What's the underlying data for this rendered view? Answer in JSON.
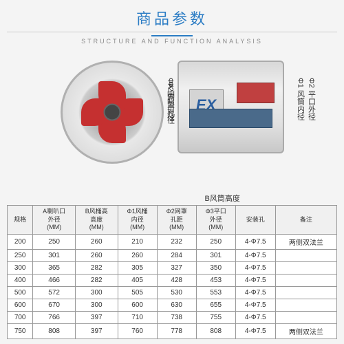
{
  "header": {
    "title": "商品参数",
    "subtitle": "STRUCTURE AND FUNCTION ANALYSIS"
  },
  "diagram": {
    "dim_phi2_mesh": "Φ2 网罩孔径",
    "dim_phiA_horn": "ΦA 喇叭口径",
    "dim_phi1_inner": "Φ1 风筒内径",
    "dim_phi2_outer": "Φ2 平口外径",
    "dim_B_height": "B风筒高度",
    "ex_mark": "EX"
  },
  "table": {
    "headers": [
      "规格",
      "A喇叭口\n外径\n(MM)",
      "B风桶高\n高度\n(MM)",
      "Φ1风桶\n内径\n(MM)",
      "Φ2网罩\n孔距\n(MM)",
      "Φ3平口\n外径\n(MM)",
      "安装孔",
      "备注"
    ],
    "rows": [
      [
        "200",
        "250",
        "260",
        "210",
        "232",
        "250",
        "4-Φ7.5",
        "两侧双法兰"
      ],
      [
        "250",
        "301",
        "260",
        "260",
        "284",
        "301",
        "4-Φ7.5",
        ""
      ],
      [
        "300",
        "365",
        "282",
        "305",
        "327",
        "350",
        "4-Φ7.5",
        ""
      ],
      [
        "400",
        "466",
        "282",
        "405",
        "428",
        "453",
        "4-Φ7.5",
        ""
      ],
      [
        "500",
        "572",
        "300",
        "505",
        "530",
        "553",
        "4-Φ7.5",
        ""
      ],
      [
        "600",
        "670",
        "300",
        "600",
        "630",
        "655",
        "4-Φ7.5",
        ""
      ],
      [
        "700",
        "766",
        "397",
        "710",
        "738",
        "755",
        "4-Φ7.5",
        ""
      ],
      [
        "750",
        "808",
        "397",
        "760",
        "778",
        "808",
        "4-Φ7.5",
        "两侧双法兰"
      ]
    ]
  },
  "colors": {
    "accent": "#2b7cc4",
    "blade": "#c53030",
    "metal": "#d0d0d0"
  }
}
